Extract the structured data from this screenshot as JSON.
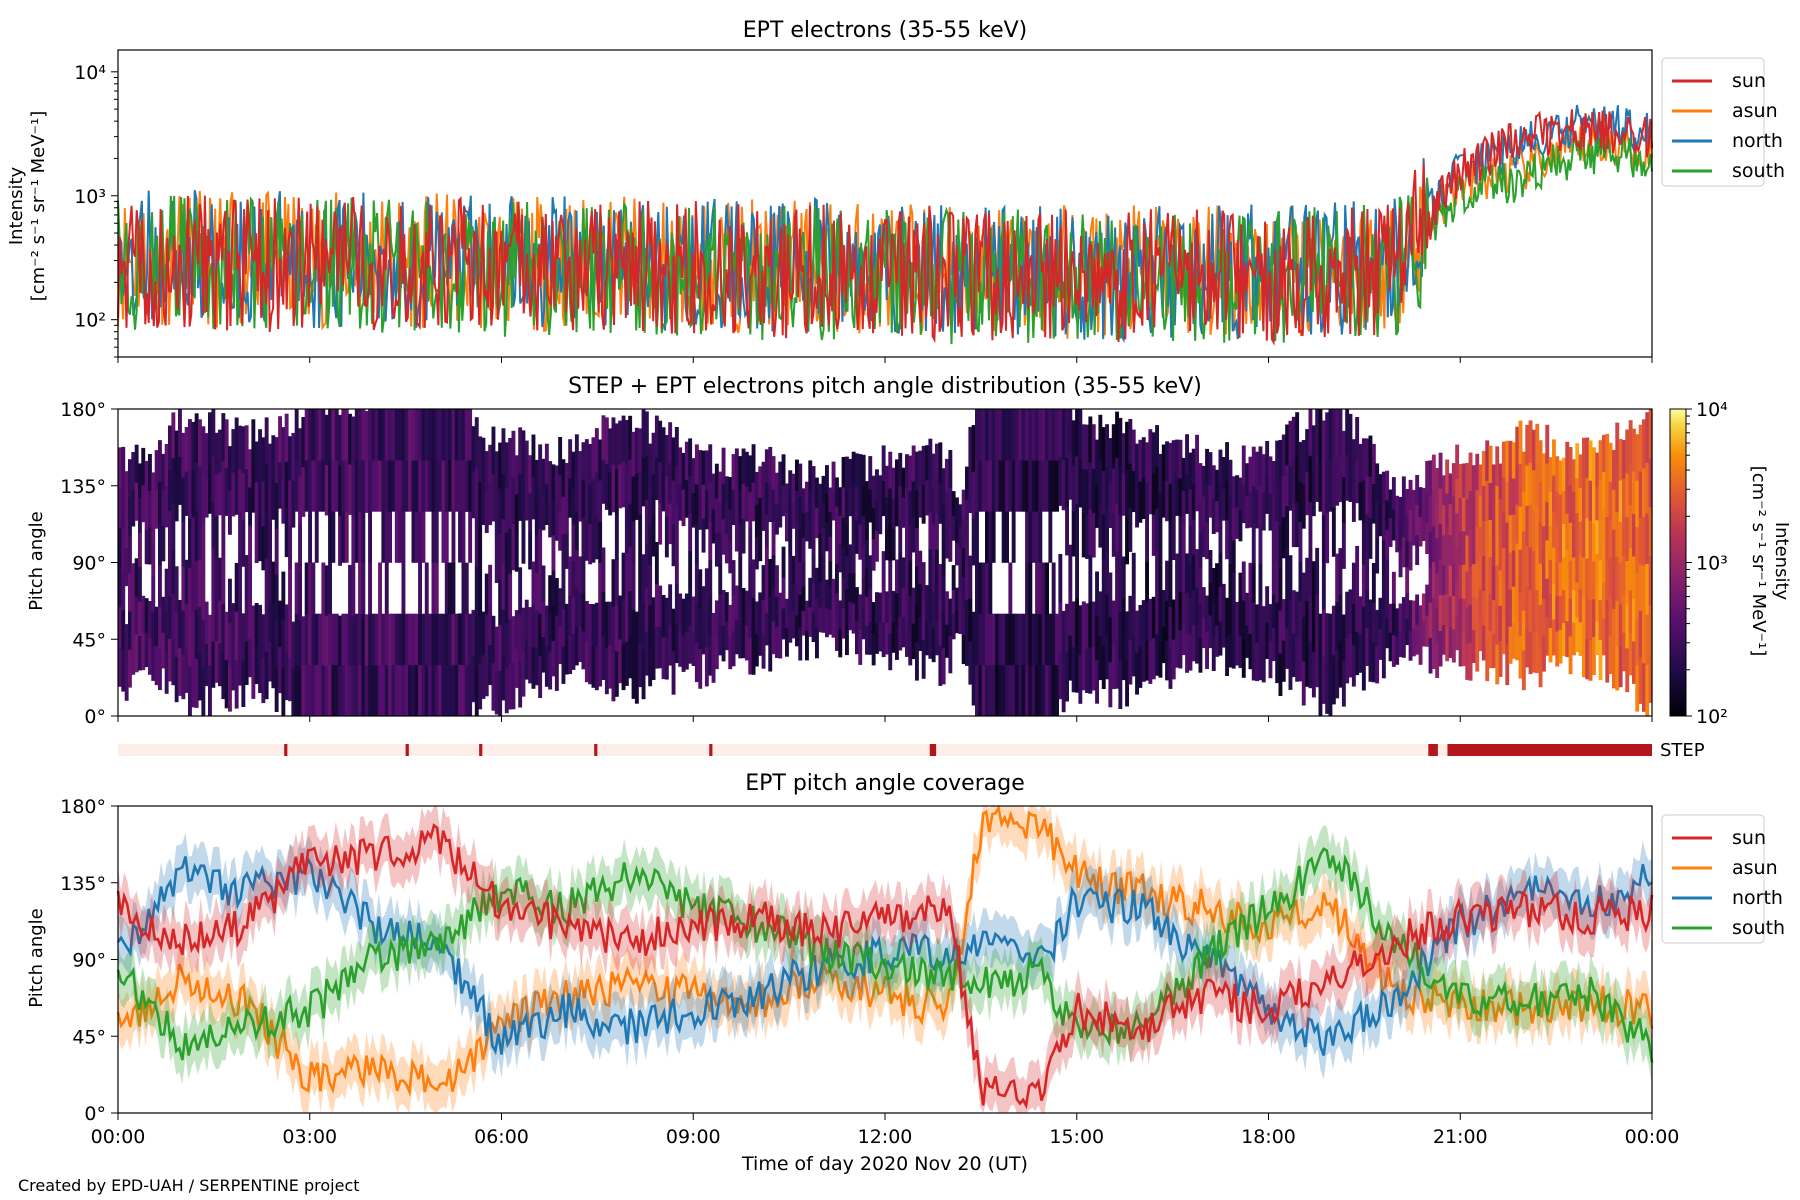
{
  "footer": {
    "credit": "Created by EPD-UAH / SERPENTINE project"
  },
  "colors": {
    "sun": "#d62728",
    "asun": "#ff7f0e",
    "north": "#1f77b4",
    "south": "#2ca02c",
    "step_bar": "#b2171e",
    "step_bg": "#fdeee9"
  },
  "chart_data": [
    {
      "id": "intensity",
      "type": "line",
      "title": "EPT electrons (35-55 keV)",
      "ylabel": [
        "Intensity",
        "[cm⁻² s⁻¹ sr⁻¹ MeV⁻¹]"
      ],
      "yscale": "log",
      "ylim": [
        50,
        15000
      ],
      "yticks": [
        {
          "v": 100,
          "label": "10²"
        },
        {
          "v": 1000,
          "label": "10³"
        },
        {
          "v": 10000,
          "label": "10⁴"
        }
      ],
      "xlim": [
        0,
        24
      ],
      "legend": {
        "position": "outside-right",
        "entries": [
          "sun",
          "asun",
          "north",
          "south"
        ]
      },
      "series": [
        {
          "name": "sun",
          "x": [
            0,
            2,
            4,
            6,
            8,
            10,
            12,
            14,
            16,
            18,
            20,
            20.5,
            21,
            22,
            23,
            24
          ],
          "y": [
            300,
            280,
            290,
            260,
            270,
            250,
            240,
            230,
            220,
            230,
            260,
            600,
            1500,
            3000,
            3500,
            3000
          ]
        },
        {
          "name": "asun",
          "x": [
            0,
            2,
            4,
            6,
            8,
            10,
            12,
            14,
            16,
            18,
            20,
            20.5,
            21,
            22,
            23,
            24
          ],
          "y": [
            320,
            300,
            310,
            280,
            290,
            270,
            260,
            250,
            240,
            250,
            280,
            550,
            1200,
            1600,
            2600,
            2400
          ]
        },
        {
          "name": "north",
          "x": [
            0,
            2,
            4,
            6,
            8,
            10,
            12,
            14,
            16,
            18,
            20,
            20.5,
            21,
            22,
            23,
            24
          ],
          "y": [
            330,
            310,
            300,
            290,
            280,
            270,
            260,
            250,
            240,
            250,
            270,
            700,
            1600,
            2500,
            3800,
            3600
          ]
        },
        {
          "name": "south",
          "x": [
            0,
            2,
            4,
            6,
            8,
            10,
            12,
            14,
            16,
            18,
            20,
            20.5,
            21,
            22,
            23,
            24
          ],
          "y": [
            290,
            270,
            280,
            250,
            260,
            240,
            230,
            220,
            210,
            220,
            250,
            500,
            1000,
            1400,
            2200,
            2000
          ]
        }
      ]
    },
    {
      "id": "pad",
      "type": "heatmap",
      "title": "STEP + EPT electrons pitch angle distribution (35-55 keV)",
      "ylabel": "Pitch angle",
      "ylim": [
        0,
        180
      ],
      "yticks": [
        {
          "v": 0,
          "label": "0°"
        },
        {
          "v": 45,
          "label": "45°"
        },
        {
          "v": 90,
          "label": "90°"
        },
        {
          "v": 135,
          "label": "135°"
        },
        {
          "v": 180,
          "label": "180°"
        }
      ],
      "xlim": [
        0,
        24
      ],
      "colorbar": {
        "label": [
          "Intensity",
          "[cm⁻² s⁻¹ sr⁻¹ MeV⁻¹]"
        ],
        "scale": "log",
        "range": [
          100,
          10000
        ],
        "ticks": [
          {
            "v": 100,
            "label": "10²"
          },
          {
            "v": 1000,
            "label": "10³"
          },
          {
            "v": 10000,
            "label": "10⁴"
          }
        ],
        "colormap": "inferno"
      },
      "step_label": "STEP",
      "step_coverage_hours": [
        [
          2.6,
          2.65
        ],
        [
          4.5,
          4.55
        ],
        [
          5.65,
          5.7
        ],
        [
          7.45,
          7.5
        ],
        [
          9.25,
          9.3
        ],
        [
          12.7,
          12.8
        ],
        [
          20.5,
          20.65
        ],
        [
          20.8,
          24
        ]
      ]
    },
    {
      "id": "coverage",
      "type": "line",
      "title": "EPT pitch angle coverage",
      "ylabel": "Pitch angle",
      "ylim": [
        0,
        180
      ],
      "yticks": [
        {
          "v": 0,
          "label": "0°"
        },
        {
          "v": 45,
          "label": "45°"
        },
        {
          "v": 90,
          "label": "90°"
        },
        {
          "v": 135,
          "label": "135°"
        },
        {
          "v": 180,
          "label": "180°"
        }
      ],
      "xlim": [
        0,
        24
      ],
      "xlabel": "Time of day 2020 Nov 20 (UT)",
      "xticks": [
        {
          "v": 0,
          "label": "00:00"
        },
        {
          "v": 3,
          "label": "03:00"
        },
        {
          "v": 6,
          "label": "06:00"
        },
        {
          "v": 9,
          "label": "09:00"
        },
        {
          "v": 12,
          "label": "12:00"
        },
        {
          "v": 15,
          "label": "15:00"
        },
        {
          "v": 18,
          "label": "18:00"
        },
        {
          "v": 21,
          "label": "21:00"
        },
        {
          "v": 24,
          "label": "00:00"
        }
      ],
      "legend": {
        "position": "outside-right",
        "entries": [
          "sun",
          "asun",
          "north",
          "south"
        ]
      },
      "series": [
        {
          "name": "sun",
          "x": [
            0,
            1,
            2,
            3,
            4,
            5,
            6,
            7,
            8,
            9,
            10,
            11,
            12,
            13,
            13.5,
            14,
            14.5,
            15,
            16,
            17,
            18,
            19,
            20,
            21,
            22,
            23,
            24
          ],
          "y": [
            120,
            100,
            110,
            150,
            150,
            160,
            120,
            110,
            100,
            110,
            115,
            105,
            115,
            120,
            15,
            12,
            15,
            60,
            50,
            70,
            60,
            80,
            100,
            115,
            120,
            115,
            118
          ]
        },
        {
          "name": "asun",
          "x": [
            0,
            1,
            2,
            3,
            4,
            5,
            6,
            7,
            8,
            9,
            10,
            11,
            12,
            13,
            13.5,
            14,
            14.5,
            15,
            16,
            17,
            18,
            19,
            20,
            21,
            22,
            23,
            24
          ],
          "y": [
            50,
            80,
            65,
            20,
            25,
            15,
            50,
            70,
            75,
            70,
            65,
            80,
            70,
            60,
            165,
            170,
            165,
            140,
            130,
            120,
            110,
            120,
            70,
            65,
            60,
            65,
            60
          ]
        },
        {
          "name": "north",
          "x": [
            0,
            1,
            2,
            3,
            4,
            5,
            6,
            7,
            8,
            9,
            10,
            11,
            12,
            13,
            13.5,
            14,
            14.5,
            15,
            16,
            17,
            18,
            19,
            20,
            21,
            22,
            23,
            24
          ],
          "y": [
            90,
            140,
            130,
            140,
            110,
            100,
            40,
            60,
            50,
            60,
            70,
            85,
            95,
            95,
            100,
            95,
            90,
            125,
            120,
            90,
            60,
            40,
            70,
            110,
            130,
            120,
            140
          ]
        },
        {
          "name": "south",
          "x": [
            0,
            1,
            2,
            3,
            4,
            5,
            6,
            7,
            8,
            9,
            10,
            11,
            12,
            13,
            13.5,
            14,
            14.5,
            15,
            16,
            17,
            18,
            19,
            20,
            21,
            22,
            23,
            24
          ],
          "y": [
            85,
            40,
            50,
            60,
            90,
            100,
            130,
            120,
            140,
            120,
            110,
            95,
            85,
            80,
            75,
            78,
            80,
            45,
            50,
            90,
            120,
            150,
            100,
            70,
            65,
            70,
            40
          ]
        }
      ]
    }
  ]
}
